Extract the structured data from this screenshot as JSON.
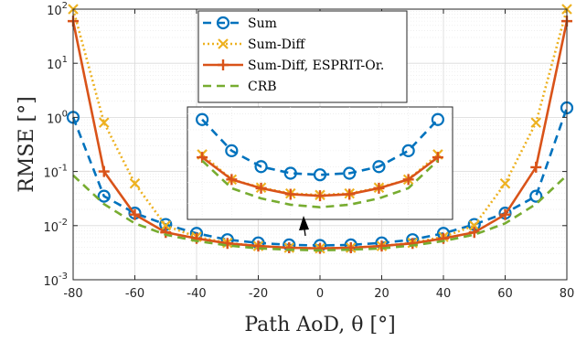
{
  "chart_data": {
    "type": "line",
    "xlabel": "Path AoD, θ [°]",
    "ylabel": "RMSE [°]",
    "xlim": [
      -80,
      80
    ],
    "ylim": [
      0.001,
      100
    ],
    "yscale": "log",
    "grid": true,
    "legend_position": "top-center",
    "x_ticks": [
      -80,
      -60,
      -40,
      -20,
      0,
      20,
      40,
      60,
      80
    ],
    "x_tick_labels": [
      "-80",
      "-60",
      "-40",
      "-20",
      "0",
      "20",
      "40",
      "60",
      "80"
    ],
    "y_ticks": [
      0.001,
      0.01,
      0.1,
      1,
      10,
      100
    ],
    "y_tick_labels": [
      {
        "base": "10",
        "exp": "-3"
      },
      {
        "base": "10",
        "exp": "-2"
      },
      {
        "base": "10",
        "exp": "-1"
      },
      {
        "base": "10",
        "exp": "0"
      },
      {
        "base": "10",
        "exp": "1"
      },
      {
        "base": "10",
        "exp": "2"
      }
    ],
    "series": [
      {
        "name": "Sum",
        "color": "#0072BD",
        "line_style": "dashed",
        "marker": "circle",
        "x": [
          -80,
          -70,
          -60,
          -50,
          -40,
          -30,
          -20,
          -10,
          0,
          10,
          20,
          30,
          40,
          50,
          60,
          70,
          80
        ],
        "y": [
          1.0,
          0.035,
          0.017,
          0.0105,
          0.0072,
          0.0055,
          0.0048,
          0.0044,
          0.0043,
          0.0044,
          0.0048,
          0.0055,
          0.0072,
          0.0105,
          0.017,
          0.035,
          1.5
        ]
      },
      {
        "name": "Sum-Diff",
        "color": "#EDB120",
        "line_style": "dotted",
        "marker": "x",
        "x": [
          -80,
          -70,
          -60,
          -50,
          -40,
          -30,
          -20,
          -10,
          0,
          10,
          20,
          30,
          40,
          50,
          60,
          70,
          80
        ],
        "y": [
          100,
          0.8,
          0.06,
          0.01,
          0.0062,
          0.0048,
          0.0042,
          0.0039,
          0.0038,
          0.0039,
          0.0042,
          0.0048,
          0.0062,
          0.01,
          0.06,
          0.8,
          100
        ]
      },
      {
        "name": "Sum-Diff, ESPRIT-Or.",
        "color": "#D95319",
        "line_style": "solid",
        "marker": "plus",
        "x": [
          -80,
          -70,
          -60,
          -50,
          -40,
          -30,
          -20,
          -10,
          0,
          10,
          20,
          30,
          40,
          50,
          60,
          70,
          80
        ],
        "y": [
          60,
          0.1,
          0.016,
          0.0075,
          0.0058,
          0.0047,
          0.0042,
          0.0039,
          0.0038,
          0.0039,
          0.0042,
          0.0047,
          0.0058,
          0.0075,
          0.016,
          0.12,
          60
        ]
      },
      {
        "name": "CRB",
        "color": "#77AC30",
        "line_style": "dashed",
        "marker": "none",
        "x": [
          -80,
          -70,
          -60,
          -50,
          -40,
          -30,
          -20,
          -10,
          0,
          10,
          20,
          30,
          40,
          50,
          60,
          70,
          80
        ],
        "y": [
          0.085,
          0.025,
          0.011,
          0.0068,
          0.0052,
          0.0043,
          0.0038,
          0.0036,
          0.0035,
          0.0036,
          0.0038,
          0.0043,
          0.0052,
          0.0068,
          0.011,
          0.025,
          0.085
        ]
      }
    ],
    "inset": {
      "series": [
        {
          "name": "Sum",
          "x": [
            -40,
            -30,
            -20,
            -10,
            0,
            10,
            20,
            30,
            40
          ],
          "y": [
            0.78,
            0.2,
            0.1,
            0.075,
            0.07,
            0.075,
            0.1,
            0.2,
            0.78
          ]
        },
        {
          "name": "Sum-Diff",
          "x": [
            -40,
            -30,
            -20,
            -10,
            0,
            10,
            20,
            30,
            40
          ],
          "y": [
            0.17,
            0.057,
            0.04,
            0.031,
            0.029,
            0.031,
            0.04,
            0.057,
            0.17
          ]
        },
        {
          "name": "Sum-Diff, ESPRIT-Or.",
          "x": [
            -40,
            -30,
            -20,
            -10,
            0,
            10,
            20,
            30,
            40
          ],
          "y": [
            0.15,
            0.057,
            0.039,
            0.03,
            0.028,
            0.03,
            0.039,
            0.057,
            0.15
          ]
        },
        {
          "name": "CRB",
          "x": [
            -40,
            -30,
            -20,
            -10,
            0,
            10,
            20,
            30,
            40
          ],
          "y": [
            0.13,
            0.039,
            0.025,
            0.019,
            0.017,
            0.019,
            0.025,
            0.039,
            0.13
          ]
        }
      ]
    }
  }
}
